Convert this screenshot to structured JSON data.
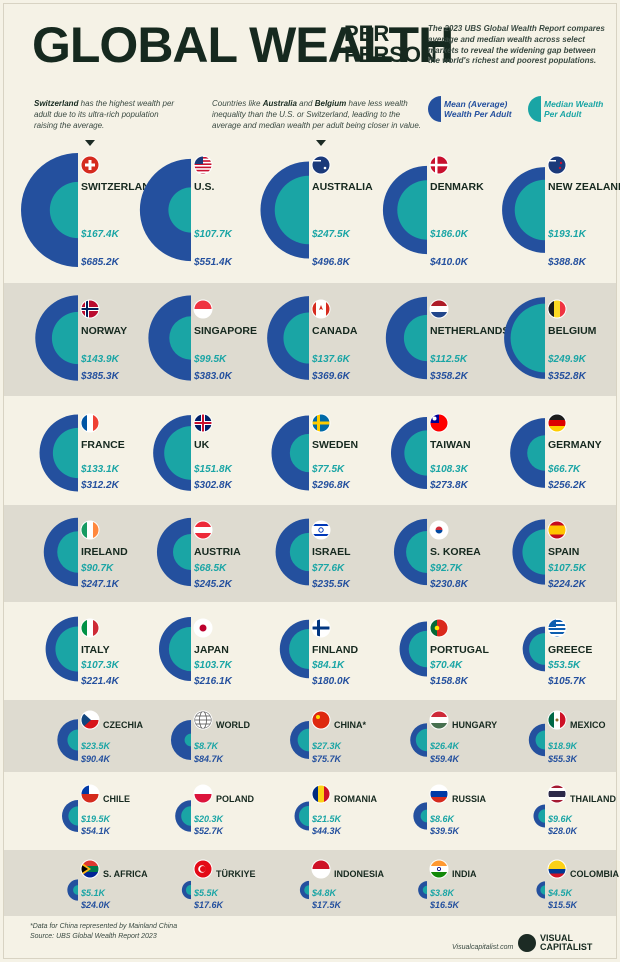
{
  "header": {
    "title": "GLOBAL WEALTH",
    "title_suffix_1": "PER",
    "title_suffix_2": "PERSON",
    "intro": "The 2023 UBS Global Wealth Report compares average and median wealth across select markets to reveal the widening gap between the world's richest and poorest populations."
  },
  "notes": {
    "switzerland_bold": "Switzerland",
    "switzerland_rest": " has the highest wealth per adult due to its ultra-rich population raising the average.",
    "australia_1": "Countries like ",
    "australia_bold1": "Australia",
    "australia_2": " and ",
    "australia_bold2": "Belgium",
    "australia_3": " have less wealth inequality than the U.S. or Switzerland, leading to the average and median wealth per adult being closer in value."
  },
  "legend": {
    "mean_label": "Mean (Average) Wealth Per Adult",
    "median_label": "Median Wealth Per Adult"
  },
  "colors": {
    "mean": "#24509e",
    "median": "#1aa5a5",
    "band": "#dedbd0",
    "background": "#f5f2e6"
  },
  "footer": {
    "note": "*Data for China represented by Mainland China",
    "source": "Source: UBS Global Wealth Report 2023",
    "site": "Visualcapitalist.com",
    "brand_1": "VISUAL",
    "brand_2": "CAPITALIST"
  },
  "chart_data": {
    "type": "semicircle-proportional",
    "value_unit": "USD",
    "series": [
      {
        "name": "Mean (Average) Wealth Per Adult",
        "key": "mean"
      },
      {
        "name": "Median Wealth Per Adult",
        "key": "median"
      }
    ],
    "countries": [
      {
        "name": "SWITZERLAND",
        "flag": "switzerland-flag-icon",
        "median": 167.4,
        "mean": 685.2,
        "median_label": "$167.4K",
        "mean_label": "$685.2K"
      },
      {
        "name": "U.S.",
        "flag": "usa-flag-icon",
        "median": 107.7,
        "mean": 551.4,
        "median_label": "$107.7K",
        "mean_label": "$551.4K"
      },
      {
        "name": "AUSTRALIA",
        "flag": "australia-flag-icon",
        "median": 247.5,
        "mean": 496.8,
        "median_label": "$247.5K",
        "mean_label": "$496.8K"
      },
      {
        "name": "DENMARK",
        "flag": "denmark-flag-icon",
        "median": 186.0,
        "mean": 410.0,
        "median_label": "$186.0K",
        "mean_label": "$410.0K"
      },
      {
        "name": "NEW ZEALAND",
        "flag": "new-zealand-flag-icon",
        "median": 193.1,
        "mean": 388.8,
        "median_label": "$193.1K",
        "mean_label": "$388.8K"
      },
      {
        "name": "NORWAY",
        "flag": "norway-flag-icon",
        "median": 143.9,
        "mean": 385.3,
        "median_label": "$143.9K",
        "mean_label": "$385.3K"
      },
      {
        "name": "SINGAPORE",
        "flag": "singapore-flag-icon",
        "median": 99.5,
        "mean": 383.0,
        "median_label": "$99.5K",
        "mean_label": "$383.0K"
      },
      {
        "name": "CANADA",
        "flag": "canada-flag-icon",
        "median": 137.6,
        "mean": 369.6,
        "median_label": "$137.6K",
        "mean_label": "$369.6K"
      },
      {
        "name": "NETHERLANDS",
        "flag": "netherlands-flag-icon",
        "median": 112.5,
        "mean": 358.2,
        "median_label": "$112.5K",
        "mean_label": "$358.2K"
      },
      {
        "name": "BELGIUM",
        "flag": "belgium-flag-icon",
        "median": 249.9,
        "mean": 352.8,
        "median_label": "$249.9K",
        "mean_label": "$352.8K"
      },
      {
        "name": "FRANCE",
        "flag": "france-flag-icon",
        "median": 133.1,
        "mean": 312.2,
        "median_label": "$133.1K",
        "mean_label": "$312.2K"
      },
      {
        "name": "UK",
        "flag": "uk-flag-icon",
        "median": 151.8,
        "mean": 302.8,
        "median_label": "$151.8K",
        "mean_label": "$302.8K"
      },
      {
        "name": "SWEDEN",
        "flag": "sweden-flag-icon",
        "median": 77.5,
        "mean": 296.8,
        "median_label": "$77.5K",
        "mean_label": "$296.8K"
      },
      {
        "name": "TAIWAN",
        "flag": "taiwan-flag-icon",
        "median": 108.3,
        "mean": 273.8,
        "median_label": "$108.3K",
        "mean_label": "$273.8K"
      },
      {
        "name": "GERMANY",
        "flag": "germany-flag-icon",
        "median": 66.7,
        "mean": 256.2,
        "median_label": "$66.7K",
        "mean_label": "$256.2K"
      },
      {
        "name": "IRELAND",
        "flag": "ireland-flag-icon",
        "median": 90.7,
        "mean": 247.1,
        "median_label": "$90.7K",
        "mean_label": "$247.1K"
      },
      {
        "name": "AUSTRIA",
        "flag": "austria-flag-icon",
        "median": 68.5,
        "mean": 245.2,
        "median_label": "$68.5K",
        "mean_label": "$245.2K"
      },
      {
        "name": "ISRAEL",
        "flag": "israel-flag-icon",
        "median": 77.6,
        "mean": 235.5,
        "median_label": "$77.6K",
        "mean_label": "$235.5K"
      },
      {
        "name": "S. KOREA",
        "flag": "south-korea-flag-icon",
        "median": 92.7,
        "mean": 230.8,
        "median_label": "$92.7K",
        "mean_label": "$230.8K"
      },
      {
        "name": "SPAIN",
        "flag": "spain-flag-icon",
        "median": 107.5,
        "mean": 224.2,
        "median_label": "$107.5K",
        "mean_label": "$224.2K"
      },
      {
        "name": "ITALY",
        "flag": "italy-flag-icon",
        "median": 107.3,
        "mean": 221.4,
        "median_label": "$107.3K",
        "mean_label": "$221.4K"
      },
      {
        "name": "JAPAN",
        "flag": "japan-flag-icon",
        "median": 103.7,
        "mean": 216.1,
        "median_label": "$103.7K",
        "mean_label": "$216.1K"
      },
      {
        "name": "FINLAND",
        "flag": "finland-flag-icon",
        "median": 84.1,
        "mean": 180.0,
        "median_label": "$84.1K",
        "mean_label": "$180.0K"
      },
      {
        "name": "PORTUGAL",
        "flag": "portugal-flag-icon",
        "median": 70.4,
        "mean": 158.8,
        "median_label": "$70.4K",
        "mean_label": "$158.8K"
      },
      {
        "name": "GREECE",
        "flag": "greece-flag-icon",
        "median": 53.5,
        "mean": 105.7,
        "median_label": "$53.5K",
        "mean_label": "$105.7K"
      },
      {
        "name": "CZECHIA",
        "flag": "czechia-flag-icon",
        "median": 23.5,
        "mean": 90.4,
        "median_label": "$23.5K",
        "mean_label": "$90.4K"
      },
      {
        "name": "WORLD",
        "flag": "globe-icon",
        "median": 8.7,
        "mean": 84.7,
        "median_label": "$8.7K",
        "mean_label": "$84.7K"
      },
      {
        "name": "CHINA*",
        "flag": "china-flag-icon",
        "median": 27.3,
        "mean": 75.7,
        "median_label": "$27.3K",
        "mean_label": "$75.7K"
      },
      {
        "name": "HUNGARY",
        "flag": "hungary-flag-icon",
        "median": 26.4,
        "mean": 59.4,
        "median_label": "$26.4K",
        "mean_label": "$59.4K"
      },
      {
        "name": "MEXICO",
        "flag": "mexico-flag-icon",
        "median": 18.9,
        "mean": 55.3,
        "median_label": "$18.9K",
        "mean_label": "$55.3K"
      },
      {
        "name": "CHILE",
        "flag": "chile-flag-icon",
        "median": 19.5,
        "mean": 54.1,
        "median_label": "$19.5K",
        "mean_label": "$54.1K"
      },
      {
        "name": "POLAND",
        "flag": "poland-flag-icon",
        "median": 20.3,
        "mean": 52.7,
        "median_label": "$20.3K",
        "mean_label": "$52.7K"
      },
      {
        "name": "ROMANIA",
        "flag": "romania-flag-icon",
        "median": 21.5,
        "mean": 44.3,
        "median_label": "$21.5K",
        "mean_label": "$44.3K"
      },
      {
        "name": "RUSSIA",
        "flag": "russia-flag-icon",
        "median": 8.6,
        "mean": 39.5,
        "median_label": "$8.6K",
        "mean_label": "$39.5K"
      },
      {
        "name": "THAILAND",
        "flag": "thailand-flag-icon",
        "median": 9.6,
        "mean": 28.0,
        "median_label": "$9.6K",
        "mean_label": "$28.0K"
      },
      {
        "name": "S. AFRICA",
        "flag": "south-africa-flag-icon",
        "median": 5.1,
        "mean": 24.0,
        "median_label": "$5.1K",
        "mean_label": "$24.0K"
      },
      {
        "name": "TÜRKIYE",
        "flag": "turkiye-flag-icon",
        "median": 5.5,
        "mean": 17.6,
        "median_label": "$5.5K",
        "mean_label": "$17.6K"
      },
      {
        "name": "INDONESIA",
        "flag": "indonesia-flag-icon",
        "median": 4.8,
        "mean": 17.5,
        "median_label": "$4.8K",
        "mean_label": "$17.5K"
      },
      {
        "name": "INDIA",
        "flag": "india-flag-icon",
        "median": 3.8,
        "mean": 16.5,
        "median_label": "$3.8K",
        "mean_label": "$16.5K"
      },
      {
        "name": "COLOMBIA",
        "flag": "colombia-flag-icon",
        "median": 4.5,
        "mean": 15.5,
        "median_label": "$4.5K",
        "mean_label": "$15.5K"
      }
    ]
  }
}
